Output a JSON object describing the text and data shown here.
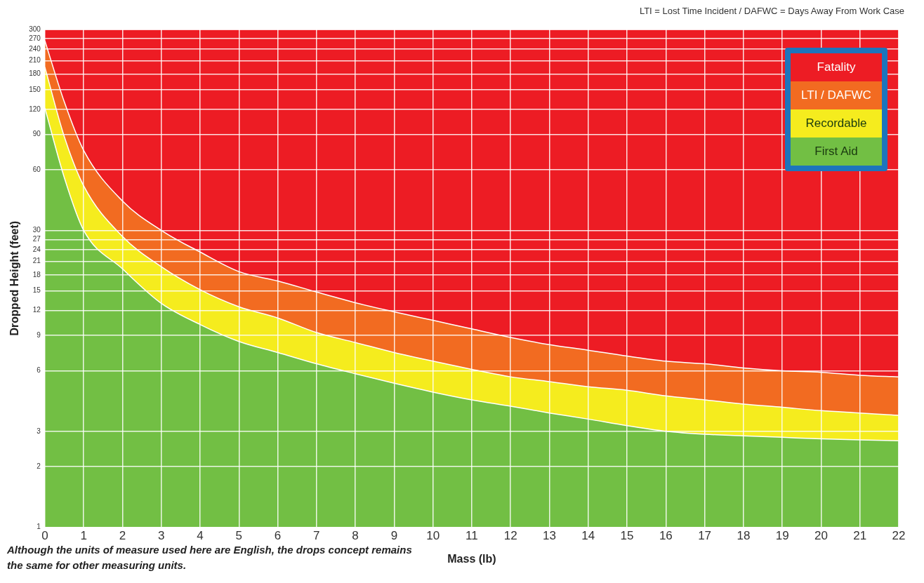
{
  "chart_data": {
    "type": "area",
    "xlabel": "Mass (lb)",
    "ylabel": "Dropped Height (feet)",
    "annotations": [
      "LTI = Lost Time Incident / DAFWC = Days Away From Work Case",
      "Although the units of measure used here are English, the drops concept remains the same for other measuring units."
    ],
    "x": [
      0,
      0.5,
      1,
      2,
      3,
      4,
      5,
      6,
      7,
      8,
      9,
      10,
      11,
      12,
      13,
      14,
      15,
      16,
      17,
      18,
      19,
      20,
      21,
      22
    ],
    "series": [
      {
        "name": "First Aid",
        "color": "#72bf44",
        "values": [
          122,
          55,
          30,
          19.3,
          13,
          10.2,
          8.4,
          7.4,
          6.5,
          5.8,
          5.2,
          4.7,
          4.3,
          4.0,
          3.7,
          3.45,
          3.2,
          3.0,
          2.9,
          2.85,
          2.8,
          2.75,
          2.72,
          2.69
        ]
      },
      {
        "name": "Recordable",
        "color": "#f5ec1e",
        "values": [
          195,
          88,
          50,
          28,
          19.8,
          15.2,
          12.5,
          11.0,
          9.3,
          8.3,
          7.4,
          6.7,
          6.1,
          5.6,
          5.3,
          5.0,
          4.8,
          4.5,
          4.3,
          4.1,
          3.95,
          3.8,
          3.7,
          3.6
        ]
      },
      {
        "name": "LTI / DAFWC",
        "color": "#f26b21",
        "values": [
          264,
          131,
          75,
          42,
          30,
          23.4,
          18.7,
          16.8,
          14.8,
          13.1,
          11.8,
          10.7,
          9.7,
          8.8,
          8.1,
          7.6,
          7.1,
          6.7,
          6.5,
          6.2,
          6.0,
          5.9,
          5.7,
          5.6
        ]
      },
      {
        "name": "Fatality",
        "color": "#ed1c24",
        "values": [
          300,
          300,
          300,
          300,
          300,
          300,
          300,
          300,
          300,
          300,
          300,
          300,
          300,
          300,
          300,
          300,
          300,
          300,
          300,
          300,
          300,
          300,
          300,
          300
        ]
      }
    ],
    "xlim": [
      0,
      22
    ],
    "xticks": [
      0,
      1,
      2,
      3,
      4,
      5,
      6,
      7,
      8,
      9,
      10,
      11,
      12,
      13,
      14,
      15,
      16,
      17,
      18,
      19,
      20,
      21,
      22
    ],
    "ylim": [
      1,
      300
    ],
    "yticks": [
      1,
      2,
      3,
      6,
      9,
      12,
      15,
      18,
      21,
      24,
      27,
      30,
      60,
      90,
      120,
      150,
      180,
      210,
      240,
      270,
      300
    ],
    "log": "y",
    "grid": true,
    "legend": "top right"
  }
}
